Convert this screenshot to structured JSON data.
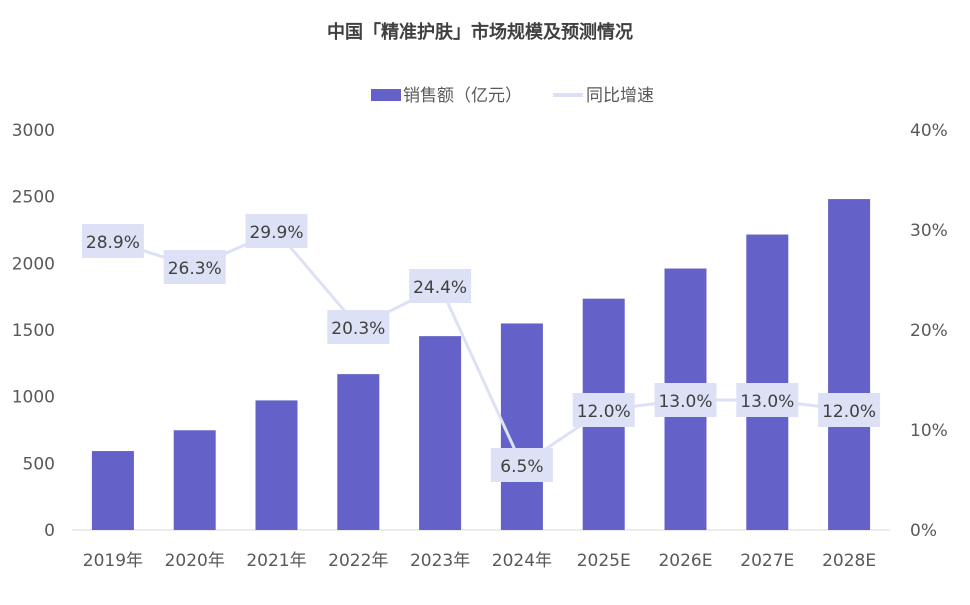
{
  "chart_data": {
    "type": "bar+line",
    "title": "中国「精准护肤」市场规模及预测情况",
    "categories": [
      "2019年",
      "2020年",
      "2021年",
      "2022年",
      "2023年",
      "2024年",
      "2025E",
      "2026E",
      "2027E",
      "2028E"
    ],
    "series": [
      {
        "name": "销售额（亿元）",
        "type": "bar",
        "axis": "left",
        "values": [
          592,
          748,
          972,
          1169,
          1454,
          1549,
          1735,
          1961,
          2216,
          2482
        ],
        "color": "#6461c8"
      },
      {
        "name": "同比增速",
        "type": "line",
        "axis": "right",
        "values": [
          28.9,
          26.3,
          29.9,
          20.3,
          24.4,
          6.5,
          12.0,
          13.0,
          13.0,
          12.0
        ],
        "labels": [
          "28.9%",
          "26.3%",
          "29.9%",
          "20.3%",
          "24.4%",
          "6.5%",
          "12.0%",
          "13.0%",
          "13.0%",
          "12.0%"
        ],
        "color": "#dde1f5"
      }
    ],
    "y_left": {
      "range": [
        0,
        3000
      ],
      "ticks": [
        "0",
        "500",
        "1000",
        "1500",
        "2000",
        "2500",
        "3000"
      ]
    },
    "y_right": {
      "range": [
        0,
        40
      ],
      "ticks": [
        "0%",
        "10%",
        "20%",
        "30%",
        "40%"
      ]
    },
    "grid": false,
    "legend_position": "top-center"
  }
}
